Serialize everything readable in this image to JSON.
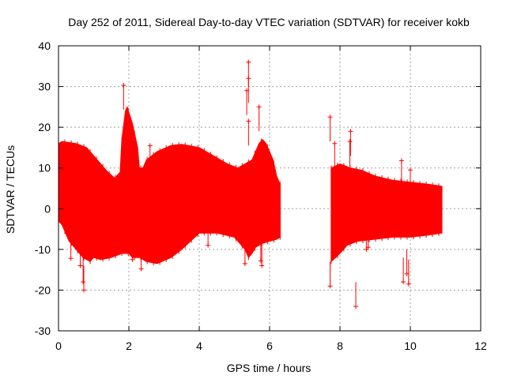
{
  "chart_data": {
    "type": "scatter",
    "title": "Day 252 of 2011, Sidereal Day-to-day VTEC variation (SDTVAR) for receiver kokb",
    "xlabel": "GPS time / hours",
    "ylabel": "SDTVAR / TECUs",
    "xlim": [
      0,
      12
    ],
    "ylim": [
      -30,
      40
    ],
    "x_ticks": [
      0,
      2,
      4,
      6,
      8,
      10,
      12
    ],
    "x_tick_labels": [
      "0",
      "2",
      "4",
      "6",
      "8",
      "10",
      "12"
    ],
    "y_ticks": [
      -30,
      -20,
      -10,
      0,
      10,
      20,
      30,
      40
    ],
    "y_tick_labels": [
      "-30",
      "-20",
      "-10",
      "0",
      "10",
      "20",
      "30",
      "40"
    ],
    "grid": true,
    "marker": "+",
    "color": "#ff0000",
    "series": [
      {
        "name": "SDTVAR",
        "envelope_segments": [
          {
            "upper": [
              [
                0.0,
                16
              ],
              [
                0.1,
                16.5
              ],
              [
                0.5,
                16
              ],
              [
                0.8,
                15
              ],
              [
                1.0,
                13
              ],
              [
                1.2,
                11
              ],
              [
                1.4,
                9
              ],
              [
                1.6,
                7.5
              ],
              [
                1.75,
                9
              ],
              [
                1.8,
                17
              ],
              [
                1.9,
                24
              ],
              [
                1.95,
                25
              ],
              [
                2.1,
                21
              ],
              [
                2.25,
                15
              ],
              [
                2.3,
                10
              ],
              [
                2.4,
                10
              ],
              [
                2.5,
                12
              ],
              [
                2.8,
                14
              ],
              [
                3.2,
                15.5
              ],
              [
                3.5,
                15.8
              ],
              [
                4.0,
                15
              ],
              [
                4.4,
                13
              ],
              [
                4.8,
                11
              ],
              [
                5.1,
                10
              ],
              [
                5.3,
                11
              ],
              [
                5.5,
                12
              ],
              [
                5.7,
                16
              ],
              [
                5.8,
                17
              ],
              [
                5.9,
                16
              ],
              [
                6.0,
                14
              ],
              [
                6.1,
                12
              ],
              [
                6.15,
                10
              ],
              [
                6.2,
                8
              ],
              [
                6.3,
                6
              ]
            ],
            "lower": [
              [
                6.3,
                -7
              ],
              [
                6.2,
                -7.5
              ],
              [
                6.0,
                -8
              ],
              [
                5.8,
                -8.5
              ],
              [
                5.6,
                -9.5
              ],
              [
                5.5,
                -11
              ],
              [
                5.4,
                -12
              ],
              [
                5.3,
                -10
              ],
              [
                5.0,
                -7
              ],
              [
                4.5,
                -6
              ],
              [
                4.0,
                -6
              ],
              [
                3.5,
                -10
              ],
              [
                3.2,
                -12
              ],
              [
                2.8,
                -13.5
              ],
              [
                2.5,
                -13
              ],
              [
                2.3,
                -12
              ],
              [
                2.1,
                -12
              ],
              [
                2.0,
                -11
              ],
              [
                1.8,
                -11
              ],
              [
                1.5,
                -12
              ],
              [
                1.2,
                -12.5
              ],
              [
                1.0,
                -12
              ],
              [
                0.9,
                -13
              ],
              [
                0.7,
                -12
              ],
              [
                0.5,
                -10
              ],
              [
                0.3,
                -8
              ],
              [
                0.1,
                -4
              ],
              [
                0.0,
                -3
              ]
            ]
          },
          {
            "upper": [
              [
                7.75,
                10
              ],
              [
                8.0,
                11
              ],
              [
                8.3,
                10
              ],
              [
                8.6,
                9.5
              ],
              [
                9.0,
                8
              ],
              [
                9.5,
                7
              ],
              [
                10.0,
                6.5
              ],
              [
                10.5,
                6
              ],
              [
                10.9,
                5.5
              ]
            ],
            "lower": [
              [
                10.9,
                -6
              ],
              [
                10.5,
                -6.5
              ],
              [
                10.0,
                -7
              ],
              [
                9.5,
                -7
              ],
              [
                9.0,
                -7.5
              ],
              [
                8.5,
                -8
              ],
              [
                8.2,
                -9
              ],
              [
                8.0,
                -11
              ],
              [
                7.75,
                -13
              ]
            ]
          }
        ],
        "outliers": [
          {
            "x": 1.85,
            "y": 30.3
          },
          {
            "x": 0.35,
            "y": -12.2
          },
          {
            "x": 0.62,
            "y": -14
          },
          {
            "x": 0.7,
            "y": -18
          },
          {
            "x": 0.72,
            "y": -20
          },
          {
            "x": 2.35,
            "y": -14.8
          },
          {
            "x": 2.1,
            "y": -12.5
          },
          {
            "x": 2.6,
            "y": 15.5
          },
          {
            "x": 4.25,
            "y": -9
          },
          {
            "x": 5.4,
            "y": 36
          },
          {
            "x": 5.4,
            "y": 32
          },
          {
            "x": 5.35,
            "y": 29
          },
          {
            "x": 5.4,
            "y": 21.5
          },
          {
            "x": 5.3,
            "y": -13.5
          },
          {
            "x": 5.7,
            "y": 25
          },
          {
            "x": 5.75,
            "y": -12.8
          },
          {
            "x": 5.78,
            "y": -14
          },
          {
            "x": 7.72,
            "y": 22.5
          },
          {
            "x": 7.72,
            "y": -19
          },
          {
            "x": 7.85,
            "y": 16
          },
          {
            "x": 8.3,
            "y": 19
          },
          {
            "x": 8.28,
            "y": 16.5
          },
          {
            "x": 8.45,
            "y": -24
          },
          {
            "x": 8.75,
            "y": -10
          },
          {
            "x": 8.8,
            "y": -9.5
          },
          {
            "x": 9.75,
            "y": 11.8
          },
          {
            "x": 9.8,
            "y": -18
          },
          {
            "x": 9.9,
            "y": -16
          },
          {
            "x": 9.95,
            "y": -18.5
          },
          {
            "x": 10.0,
            "y": 9.5
          }
        ]
      }
    ]
  }
}
